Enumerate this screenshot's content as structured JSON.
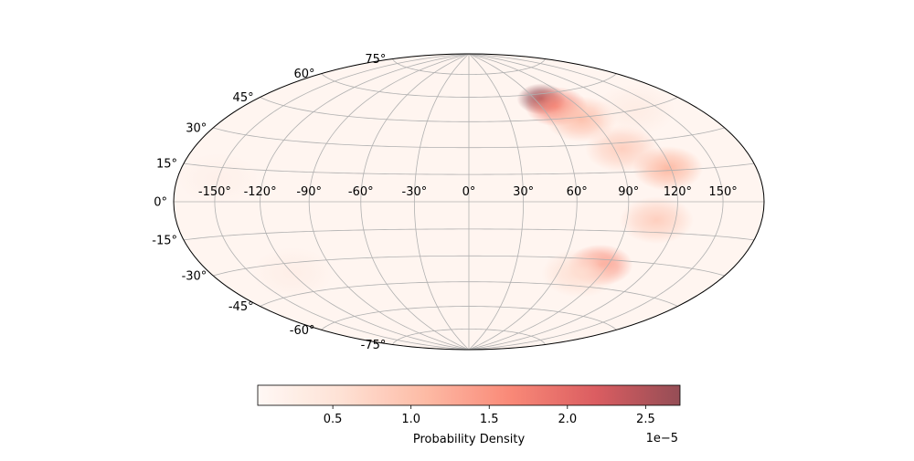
{
  "chart_data": {
    "type": "heatmap",
    "projection": "hammer",
    "grid": true,
    "longitude_ticks": [
      -150,
      -120,
      -90,
      -60,
      -30,
      0,
      30,
      60,
      90,
      120,
      150
    ],
    "longitude_tick_labels": [
      "-150°",
      "-120°",
      "-90°",
      "-60°",
      "-30°",
      "0°",
      "30°",
      "60°",
      "90°",
      "120°",
      "150°"
    ],
    "latitude_ticks": [
      75,
      60,
      45,
      30,
      15,
      0,
      -15,
      -30,
      -45,
      -60,
      -75
    ],
    "latitude_tick_labels": [
      "75°",
      "60°",
      "45°",
      "30°",
      "15°",
      "0°",
      "-15°",
      "-30°",
      "-45°",
      "-60°",
      "-75°"
    ],
    "colormap": "Reds",
    "colormap_colors": [
      "#fff5f0",
      "#fdd4c2",
      "#fc9c7d",
      "#f6553d",
      "#cb181d",
      "#67000d"
    ],
    "colormap_alpha": 0.7,
    "colorbar": {
      "label": "Probability Density",
      "ticks": [
        0.5,
        1.0,
        1.5,
        2.0,
        2.5
      ],
      "tick_labels": [
        "0.5",
        "1.0",
        "1.5",
        "2.0",
        "2.5"
      ],
      "offset_text": "1e−5",
      "range": [
        0.02,
        2.72
      ],
      "placement": "bottom"
    },
    "density_features": [
      {
        "lon": 66,
        "lat": 57,
        "value": 2.72
      },
      {
        "lon": 72,
        "lat": 52,
        "value": 1.7
      },
      {
        "lon": 82,
        "lat": 44,
        "value": 1.0
      },
      {
        "lon": 95,
        "lat": 27,
        "value": 0.8
      },
      {
        "lon": 118,
        "lat": 16,
        "value": 1.1
      },
      {
        "lon": 108,
        "lat": -9,
        "value": 0.8
      },
      {
        "lon": 85,
        "lat": -33,
        "value": 1.5
      },
      {
        "lon": 75,
        "lat": -38,
        "value": 0.6
      },
      {
        "lon": -120,
        "lat": -35,
        "value": 0.25
      },
      {
        "lon": -150,
        "lat": 10,
        "value": 0.2
      },
      {
        "lon": 130,
        "lat": 45,
        "value": 0.3
      },
      {
        "lon": 0,
        "lat": 0,
        "value": 0.1
      }
    ],
    "background_value": 0.1
  }
}
